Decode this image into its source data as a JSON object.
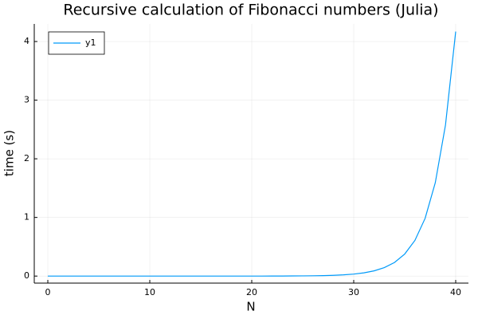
{
  "chart_data": {
    "type": "line",
    "title": "Recursive calculation of Fibonacci numbers (Julia)",
    "x_label": "N",
    "y_label": "time (s)",
    "x": [
      0,
      1,
      2,
      3,
      4,
      5,
      6,
      7,
      8,
      9,
      10,
      11,
      12,
      13,
      14,
      15,
      16,
      17,
      18,
      19,
      20,
      21,
      22,
      23,
      24,
      25,
      26,
      27,
      28,
      29,
      30,
      31,
      32,
      33,
      34,
      35,
      36,
      37,
      38,
      39,
      40
    ],
    "series": [
      {
        "name": "y1",
        "color": "#009af9",
        "values": [
          0,
          0,
          0,
          0,
          0,
          0,
          0,
          0,
          0,
          0,
          0,
          0,
          0,
          0,
          0,
          0,
          0,
          0,
          0,
          0,
          0,
          0,
          0.001,
          0.001,
          0.002,
          0.003,
          0.005,
          0.008,
          0.013,
          0.021,
          0.034,
          0.055,
          0.089,
          0.144,
          0.232,
          0.376,
          0.608,
          0.984,
          1.593,
          2.577,
          4.17
        ]
      }
    ],
    "xlim": [
      -1.33,
      41.25
    ],
    "ylim": [
      -0.12,
      4.3
    ],
    "xticks": [
      0,
      10,
      20,
      30,
      40
    ],
    "yticks": [
      0,
      1,
      2,
      3,
      4
    ],
    "grid": true,
    "legend": "top-left"
  }
}
